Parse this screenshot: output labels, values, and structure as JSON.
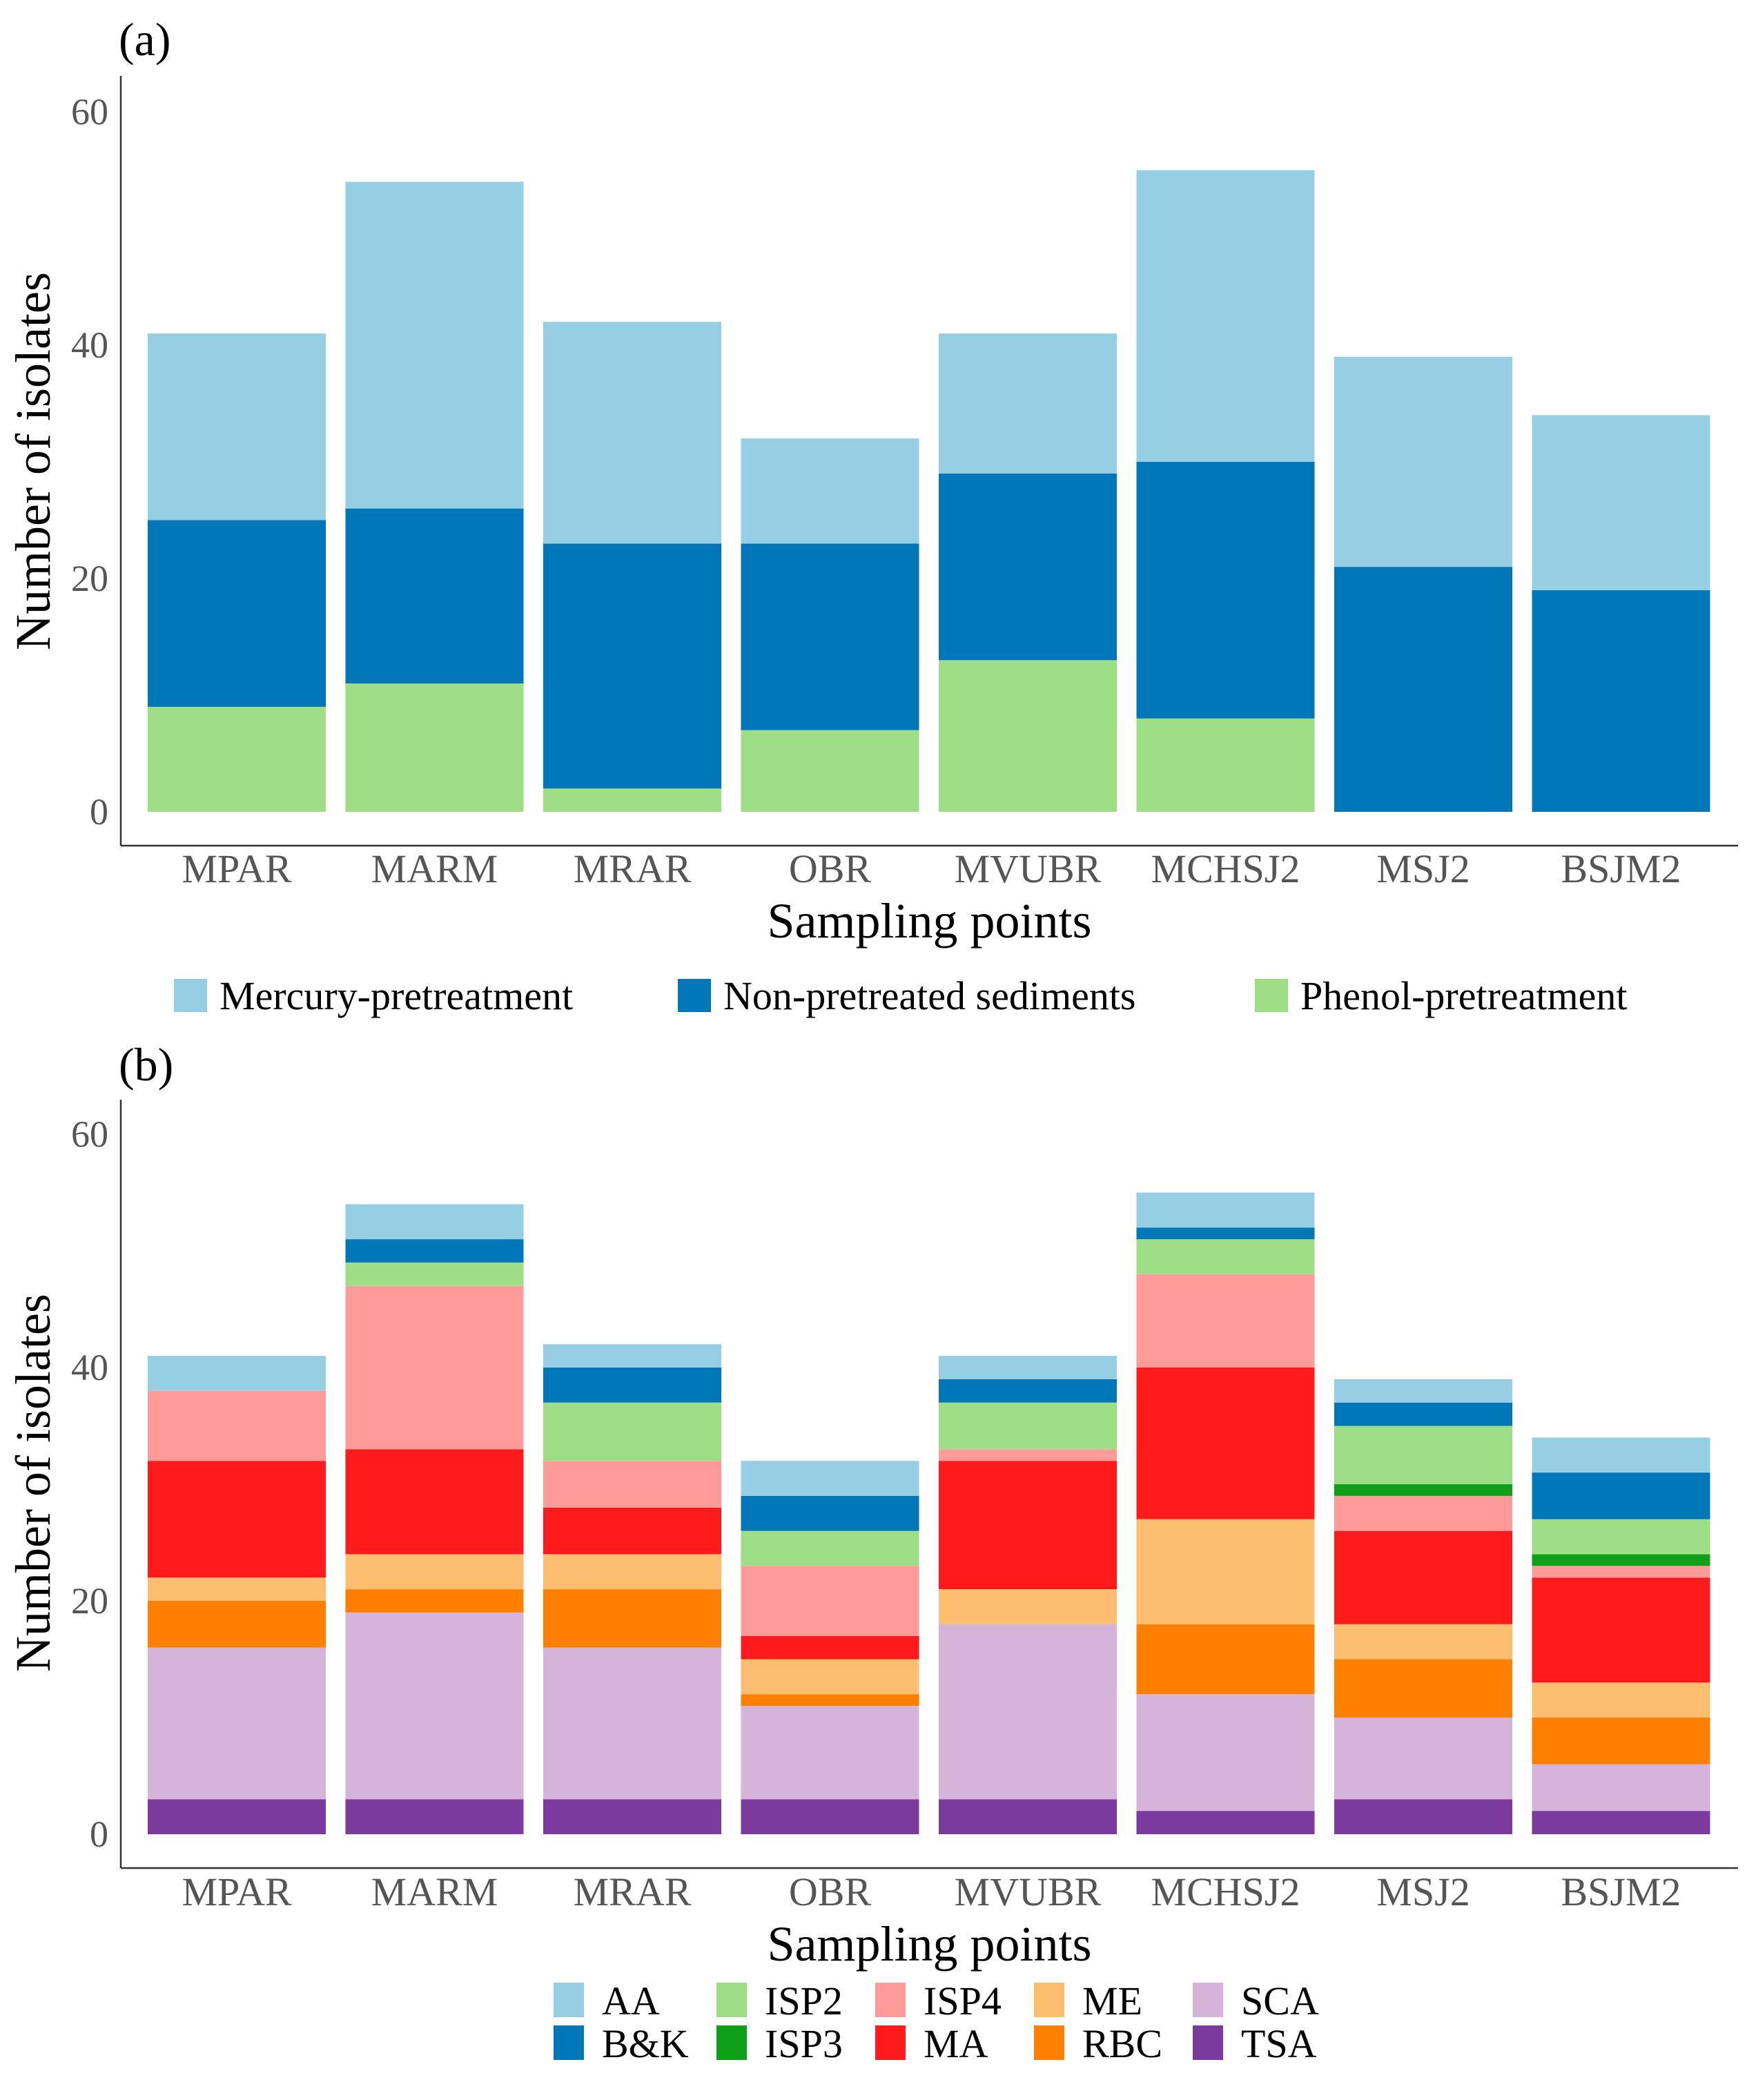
{
  "chart_data": [
    {
      "type": "bar",
      "stacked": true,
      "panel_label": "(a)",
      "categories": [
        "MPAR",
        "MARM",
        "MRAR",
        "OBR",
        "MVUBR",
        "MCHSJ2",
        "MSJ2",
        "BSJM2"
      ],
      "series": [
        {
          "name": "Phenol-pretreatment",
          "color": "#9EDE86",
          "values": [
            9,
            11,
            2,
            7,
            13,
            8,
            0,
            0
          ]
        },
        {
          "name": "Non-pretreated sediments",
          "color": "#0077B8",
          "values": [
            16,
            15,
            21,
            16,
            16,
            22,
            21,
            19
          ]
        },
        {
          "name": "Mercury-pretreatment",
          "color": "#96CEE4",
          "values": [
            16,
            28,
            19,
            9,
            12,
            25,
            18,
            15
          ]
        }
      ],
      "legend_order": [
        "Mercury-pretreatment",
        "Non-pretreated sediments",
        "Phenol-pretreatment"
      ],
      "xlabel": "Sampling points",
      "ylabel": "Number of isolates",
      "yticks": [
        0,
        20,
        40,
        60
      ],
      "ylim": [
        0,
        60
      ],
      "legend_position": "bottom",
      "grid": false
    },
    {
      "type": "bar",
      "stacked": true,
      "panel_label": "(b)",
      "categories": [
        "MPAR",
        "MARM",
        "MRAR",
        "OBR",
        "MVUBR",
        "MCHSJ2",
        "MSJ2",
        "BSJM2"
      ],
      "series": [
        {
          "name": "TSA",
          "color": "#7A3A9E",
          "values": [
            3,
            3,
            3,
            3,
            3,
            2,
            3,
            2
          ]
        },
        {
          "name": "SCA",
          "color": "#D6B4DA",
          "values": [
            13,
            16,
            13,
            8,
            15,
            10,
            7,
            4
          ]
        },
        {
          "name": "RBC",
          "color": "#FF7F00",
          "values": [
            4,
            2,
            5,
            1,
            0,
            6,
            5,
            4
          ]
        },
        {
          "name": "ME",
          "color": "#FDBF6F",
          "values": [
            2,
            3,
            3,
            3,
            3,
            9,
            3,
            3
          ]
        },
        {
          "name": "MA",
          "color": "#FF1A1C",
          "values": [
            10,
            9,
            4,
            2,
            11,
            13,
            8,
            9
          ]
        },
        {
          "name": "ISP4",
          "color": "#FF9C9A",
          "values": [
            6,
            14,
            4,
            6,
            1,
            8,
            3,
            1
          ]
        },
        {
          "name": "ISP3",
          "color": "#0FA01A",
          "values": [
            0,
            0,
            0,
            0,
            0,
            0,
            1,
            1
          ]
        },
        {
          "name": "ISP2",
          "color": "#9EDE86",
          "values": [
            0,
            2,
            5,
            3,
            4,
            3,
            5,
            3
          ]
        },
        {
          "name": "B&K",
          "color": "#0077B8",
          "values": [
            0,
            2,
            3,
            3,
            2,
            1,
            2,
            4
          ]
        },
        {
          "name": "AA",
          "color": "#96CEE4",
          "values": [
            3,
            3,
            2,
            3,
            2,
            3,
            2,
            3
          ]
        }
      ],
      "legend_rows": [
        [
          "AA",
          "ISP2",
          "ISP4",
          "ME",
          "SCA"
        ],
        [
          "B&K",
          "ISP3",
          "MA",
          "RBC",
          "TSA"
        ]
      ],
      "xlabel": "Sampling points",
      "ylabel": "Number of isolates",
      "yticks": [
        0,
        20,
        40,
        60
      ],
      "ylim": [
        0,
        60
      ],
      "legend_position": "bottom",
      "grid": false
    }
  ]
}
